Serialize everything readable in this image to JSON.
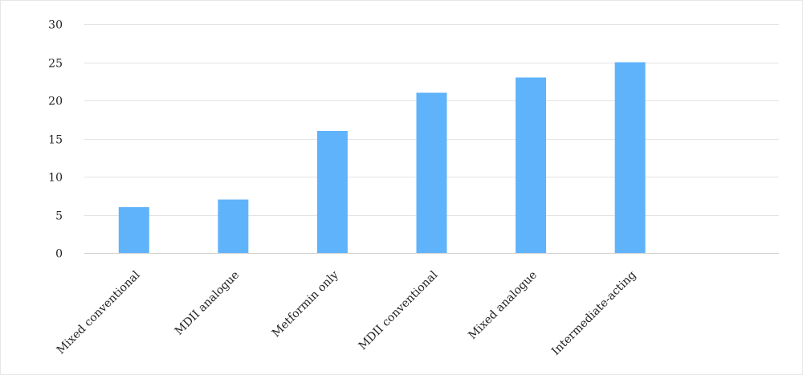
{
  "chart_data": {
    "type": "bar",
    "categories": [
      "Mixed conventional",
      "MDII analogue",
      "Metformin only",
      "MDII conventional",
      "Mixed analogue",
      "Intermediate-acting",
      ""
    ],
    "values": [
      6,
      7,
      16,
      21,
      23,
      25,
      null
    ],
    "ylim": [
      0,
      30
    ],
    "yticks": [
      0,
      5,
      10,
      15,
      20,
      25,
      30
    ],
    "grid": true,
    "legend": "none",
    "colors": {
      "bar": "#5fb3fb",
      "grid": "#e3e3e3",
      "text": "#222222"
    }
  }
}
